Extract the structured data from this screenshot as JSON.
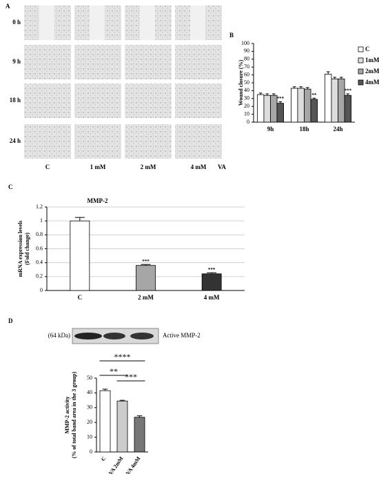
{
  "panel_a": {
    "label": "A",
    "rows": [
      "0 h",
      "9 h",
      "18 h",
      "24 h"
    ],
    "columns": [
      "C",
      "1 mM",
      "2 mM",
      "4 mM"
    ],
    "treatment": "VA"
  },
  "chart_data": [
    {
      "type": "bar",
      "label": "B",
      "ylabel": "Wound closure (%)",
      "categories": [
        "9h",
        "18h",
        "24h"
      ],
      "series": [
        {
          "name": "C",
          "color": "#ffffff",
          "values": [
            35,
            43,
            61
          ],
          "errors": [
            2,
            2,
            3
          ],
          "significance": [
            null,
            null,
            null
          ]
        },
        {
          "name": "1mM",
          "color": "#dddddd",
          "values": [
            34,
            43,
            55
          ],
          "errors": [
            2,
            2,
            2
          ],
          "significance": [
            null,
            null,
            null
          ]
        },
        {
          "name": "2mM",
          "color": "#a6a6a6",
          "values": [
            34,
            42,
            55
          ],
          "errors": [
            2,
            2,
            2
          ],
          "significance": [
            null,
            null,
            null
          ]
        },
        {
          "name": "4mM",
          "color": "#555555",
          "values": [
            24,
            29,
            34
          ],
          "errors": [
            2,
            1.5,
            2
          ],
          "significance": [
            "***",
            "**",
            "***"
          ]
        }
      ],
      "ylim": [
        0,
        100
      ],
      "yticks": [
        0,
        10,
        20,
        30,
        40,
        50,
        60,
        70,
        80,
        90,
        100
      ],
      "grid": false,
      "legend": "right"
    },
    {
      "type": "bar",
      "label": "C",
      "title": "MMP-2",
      "ylabel": [
        "mRNA expression levels",
        "(Fold change)"
      ],
      "categories": [
        "C",
        "2 mM",
        "4 mM"
      ],
      "values": [
        1.0,
        0.36,
        0.24
      ],
      "errors": [
        0.05,
        0.015,
        0.015
      ],
      "colors": [
        "#ffffff",
        "#a6a6a6",
        "#333333"
      ],
      "significance": [
        null,
        "***",
        "***"
      ],
      "ylim": [
        0,
        1.2
      ],
      "yticks": [
        0,
        0.2,
        0.4,
        0.6,
        0.8,
        1,
        1.2
      ],
      "grid": true
    },
    {
      "type": "bar",
      "label": "D",
      "ylabel": [
        "MMP-2 activity",
        "(% of total band area in the 3 group)"
      ],
      "categories": [
        "C",
        "VA 2mM",
        "VA 4mM"
      ],
      "values": [
        41.5,
        34.5,
        23.5
      ],
      "errors": [
        1,
        0.5,
        1
      ],
      "colors": [
        "#ffffff",
        "#cccccc",
        "#777777"
      ],
      "brackets": [
        {
          "text": "****",
          "from": 0,
          "to": 2
        },
        {
          "text": "**",
          "from": 0,
          "to": 1
        },
        {
          "text": "***",
          "from": 1,
          "to": 2
        }
      ],
      "ylim": [
        0,
        50
      ],
      "yticks": [
        0,
        10,
        20,
        30,
        40,
        50
      ],
      "grid": false,
      "x_labels_rotated": true
    }
  ],
  "blot": {
    "size": "(64 kDa)",
    "label": "Active MMP-2"
  }
}
